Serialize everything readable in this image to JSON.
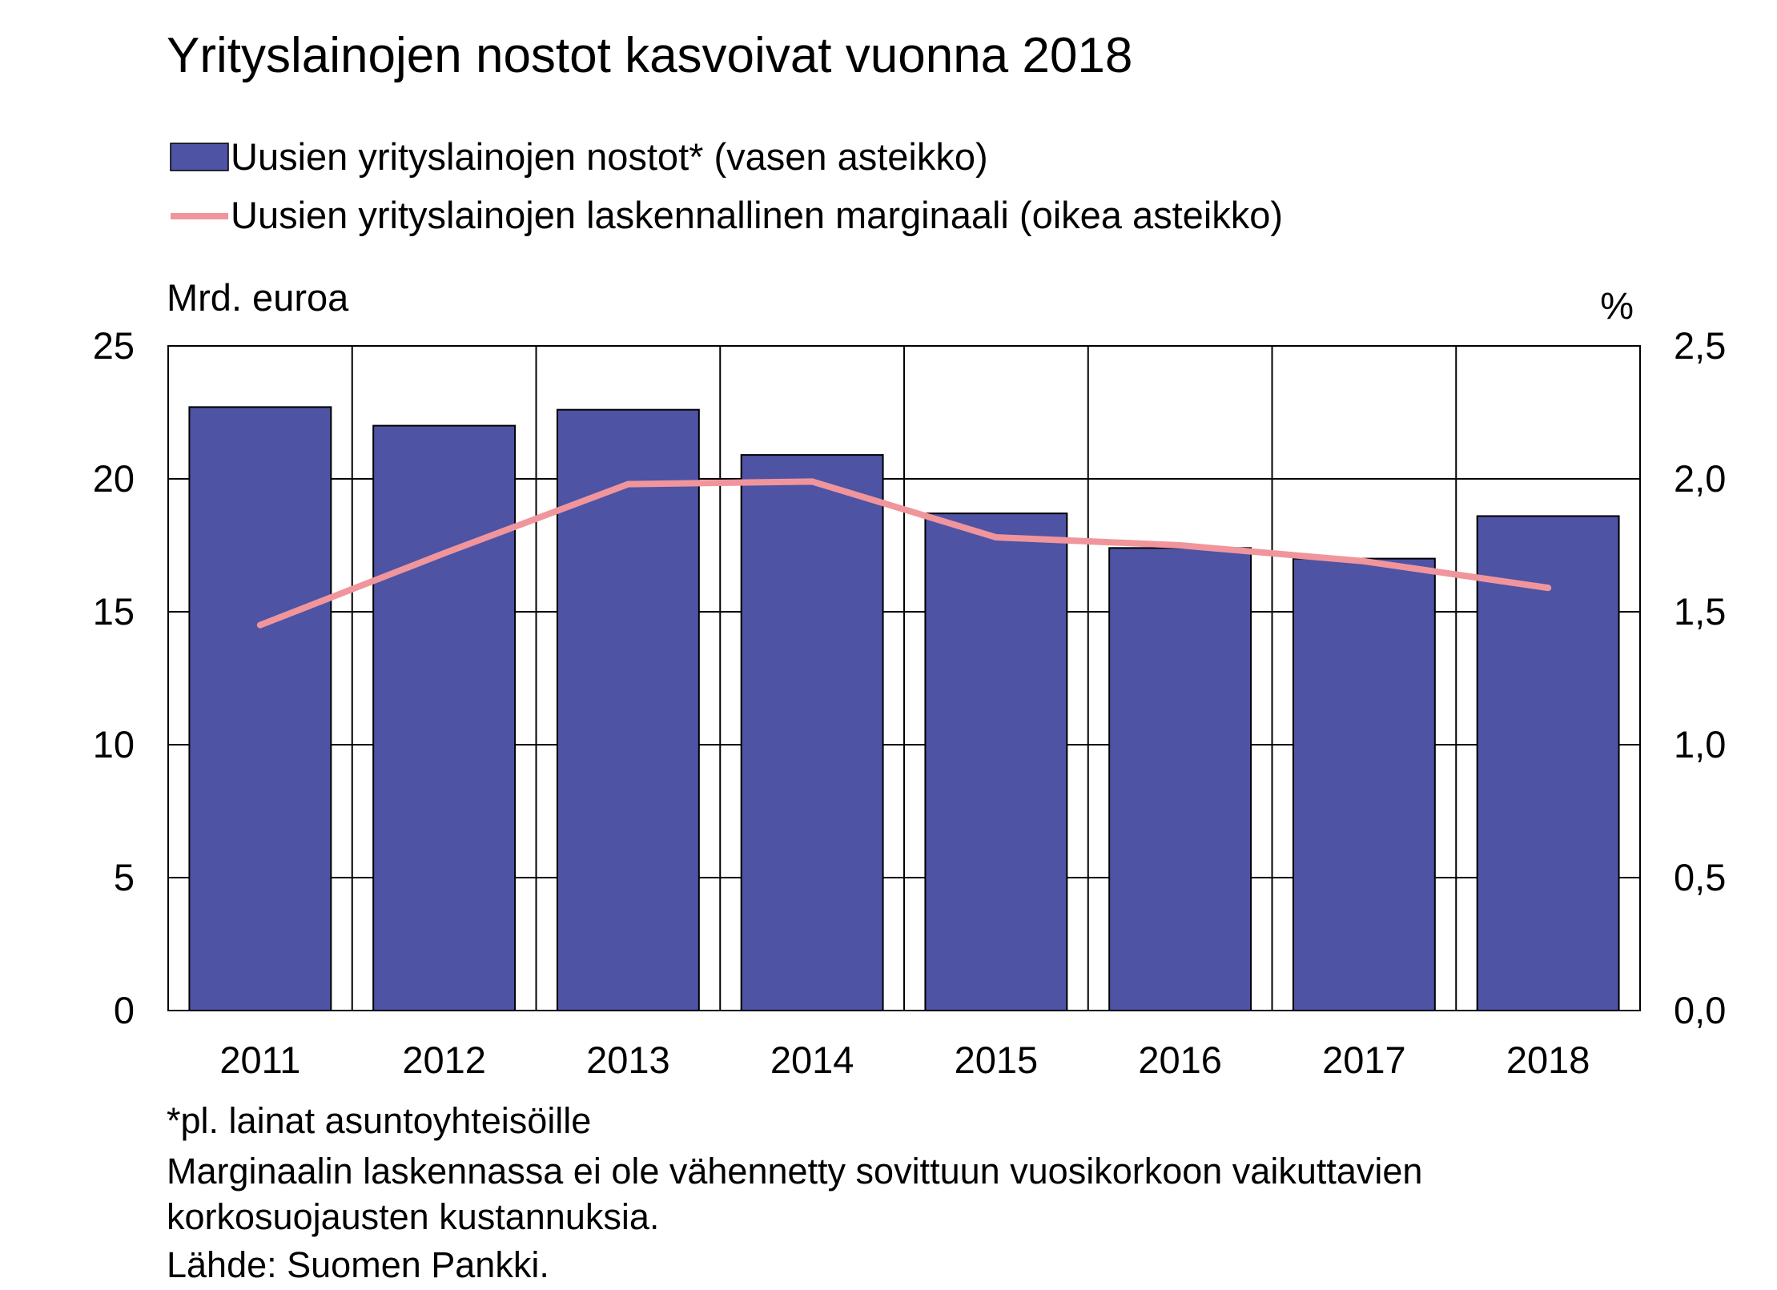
{
  "chart_data": {
    "type": "bar+line",
    "title": "Yrityslainojen nostot kasvoivat vuonna 2018",
    "categories": [
      "2011",
      "2012",
      "2013",
      "2014",
      "2015",
      "2016",
      "2017",
      "2018"
    ],
    "series": [
      {
        "name": "Uusien yrityslainojen nostot* (vasen asteikko)",
        "type": "bar",
        "axis": "left",
        "color": "#4e53a4",
        "values": [
          22.7,
          22.0,
          22.6,
          20.9,
          18.7,
          17.4,
          17.0,
          18.6
        ]
      },
      {
        "name": "Uusien yrityslainojen laskennallinen marginaali (oikea asteikko)",
        "type": "line",
        "axis": "right",
        "color": "#f0959c",
        "values": [
          1.45,
          1.72,
          1.98,
          1.99,
          1.78,
          1.75,
          1.69,
          1.59
        ]
      }
    ],
    "left_axis": {
      "label": "Mrd. euroa",
      "ylim": [
        0,
        25
      ],
      "ticks": [
        "0",
        "5",
        "10",
        "15",
        "20",
        "25"
      ]
    },
    "right_axis": {
      "label": "%",
      "ylim": [
        0,
        2.5
      ],
      "ticks": [
        "0,0",
        "0,5",
        "1,0",
        "1,5",
        "2,0",
        "2,5"
      ]
    },
    "grid": true,
    "legend_position": "top-left",
    "notes": [
      "*pl. lainat asuntoyhteisöille",
      "Marginaalin laskennassa ei ole vähennetty sovittuun vuosikorkoon vaikuttavien",
      "korkosuojausten kustannuksia.",
      "Lähde: Suomen Pankki."
    ]
  }
}
